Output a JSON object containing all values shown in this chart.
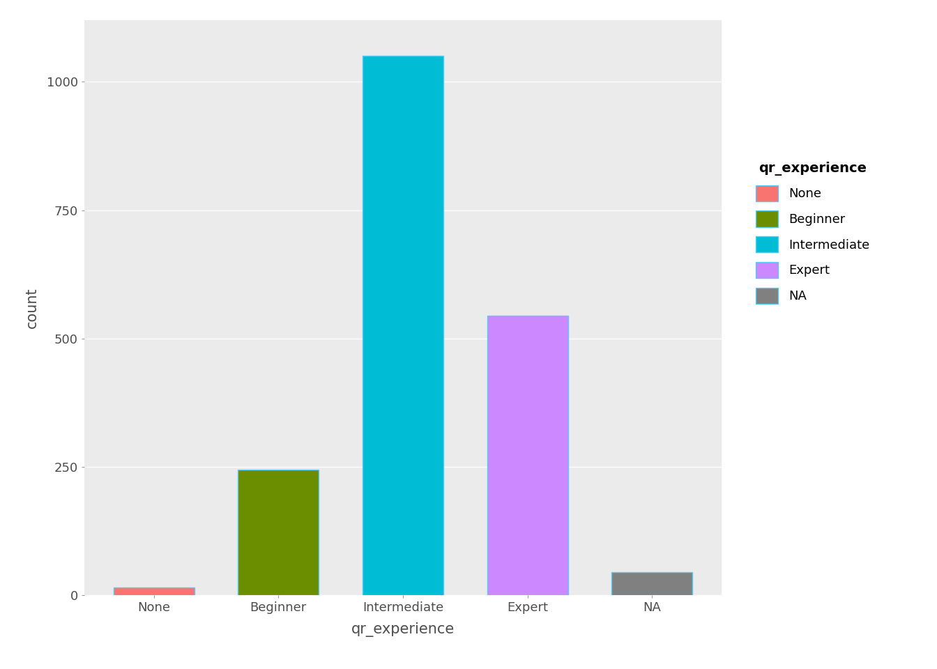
{
  "categories": [
    "None",
    "Beginner",
    "Intermediate",
    "Expert",
    "NA"
  ],
  "values": [
    15,
    245,
    1050,
    545,
    45
  ],
  "bar_colors": [
    "#F87470",
    "#6B8E00",
    "#00BCD4",
    "#CC88FF",
    "#808080"
  ],
  "bar_edgecolor": "#56CCF2",
  "legend_title": "qr_experience",
  "legend_labels": [
    "None",
    "Beginner",
    "Intermediate",
    "Expert",
    "NA"
  ],
  "legend_colors": [
    "#F87470",
    "#6B8E00",
    "#00BCD4",
    "#CC88FF",
    "#808080"
  ],
  "xlabel": "qr_experience",
  "ylabel": "count",
  "yticks": [
    0,
    250,
    500,
    750,
    1000
  ],
  "ylim": [
    0,
    1120
  ],
  "background_color": "#EBEBEB",
  "grid_color": "#FFFFFF",
  "axis_text_color": "#4D4D4D",
  "bar_width": 0.65
}
